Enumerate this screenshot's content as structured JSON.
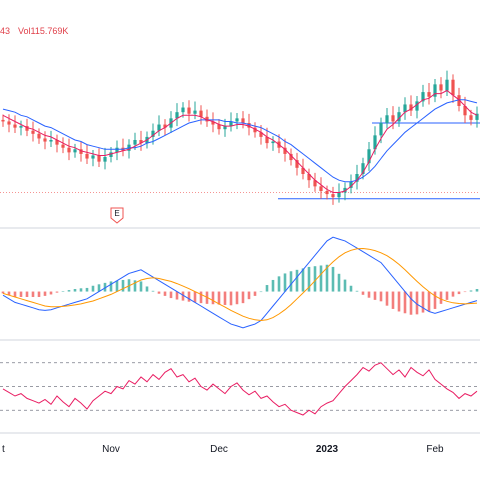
{
  "header": {
    "left_fragment": "43",
    "volume_text": "Vol115.769K"
  },
  "event_marker": {
    "letter": "E"
  },
  "colors": {
    "up": "#26a69a",
    "down": "#ef5350",
    "ma_fast": "#e91e63",
    "ma_slow": "#2962ff",
    "macd": "#2962ff",
    "signal": "#ff9800",
    "rsi": "#e91e63",
    "grid": "#e0e3eb",
    "hline": "#2962ff"
  },
  "chart_data": {
    "type": "candlestick",
    "x_axis_labels": [
      "t",
      "Nov",
      "Dec",
      "2023",
      "Feb"
    ],
    "price": {
      "close": [
        40.2,
        40.0,
        39.8,
        39.9,
        39.6,
        39.4,
        39.1,
        38.9,
        39.0,
        38.7,
        38.5,
        38.2,
        38.4,
        38.1,
        37.8,
        38.0,
        37.6,
        37.9,
        38.2,
        38.5,
        38.3,
        38.7,
        39.0,
        38.8,
        39.2,
        39.6,
        40.0,
        39.8,
        40.4,
        40.8,
        41.1,
        40.7,
        40.9,
        40.5,
        40.2,
        40.0,
        39.7,
        39.9,
        40.2,
        40.4,
        40.1,
        39.8,
        39.5,
        39.2,
        38.8,
        38.9,
        38.5,
        38.1,
        37.7,
        37.2,
        36.8,
        36.4,
        36.0,
        35.7,
        35.5,
        35.3,
        35.6,
        35.9,
        36.3,
        36.8,
        37.5,
        38.4,
        39.3,
        40.1,
        40.6,
        40.2,
        40.8,
        41.3,
        40.9,
        41.5,
        42.1,
        41.8,
        42.6,
        42.2,
        42.9,
        41.9,
        41.2,
        40.6,
        40.3,
        40.7
      ],
      "ma_fast": [
        40.6,
        40.4,
        40.2,
        40.0,
        39.8,
        39.7,
        39.5,
        39.3,
        39.2,
        39.0,
        38.8,
        38.6,
        38.5,
        38.3,
        38.2,
        38.1,
        38.0,
        38.0,
        38.1,
        38.2,
        38.3,
        38.4,
        38.6,
        38.8,
        39.0,
        39.3,
        39.6,
        39.8,
        40.1,
        40.4,
        40.6,
        40.6,
        40.6,
        40.5,
        40.3,
        40.2,
        40.0,
        39.9,
        39.9,
        40.0,
        40.0,
        39.9,
        39.7,
        39.5,
        39.2,
        39.0,
        38.7,
        38.4,
        38.0,
        37.6,
        37.2,
        36.8,
        36.4,
        36.1,
        35.8,
        35.6,
        35.6,
        35.7,
        36.0,
        36.4,
        36.9,
        37.6,
        38.4,
        39.1,
        39.7,
        40.0,
        40.4,
        40.8,
        41.0,
        41.3,
        41.6,
        41.7,
        42.0,
        42.0,
        42.2,
        41.9,
        41.6,
        41.2,
        40.8,
        40.6
      ],
      "ma_slow": [
        41.0,
        40.9,
        40.8,
        40.6,
        40.5,
        40.3,
        40.1,
        39.9,
        39.8,
        39.6,
        39.4,
        39.2,
        39.0,
        38.9,
        38.7,
        38.6,
        38.5,
        38.4,
        38.4,
        38.4,
        38.4,
        38.5,
        38.5,
        38.6,
        38.8,
        38.9,
        39.1,
        39.3,
        39.5,
        39.7,
        39.9,
        40.1,
        40.2,
        40.3,
        40.3,
        40.3,
        40.3,
        40.2,
        40.2,
        40.1,
        40.1,
        40.0,
        39.9,
        39.8,
        39.6,
        39.4,
        39.2,
        38.9,
        38.7,
        38.4,
        38.1,
        37.8,
        37.5,
        37.2,
        36.9,
        36.6,
        36.4,
        36.3,
        36.3,
        36.4,
        36.6,
        36.9,
        37.3,
        37.8,
        38.3,
        38.7,
        39.1,
        39.5,
        39.8,
        40.1,
        40.4,
        40.7,
        41.0,
        41.2,
        41.4,
        41.5,
        41.6,
        41.6,
        41.5,
        41.4
      ],
      "support_level": 35.2,
      "resistance_level": 40.1,
      "y_range": [
        33.5,
        44.5
      ]
    },
    "macd": {
      "macd": [
        -0.1,
        -0.2,
        -0.3,
        -0.35,
        -0.4,
        -0.45,
        -0.5,
        -0.52,
        -0.5,
        -0.45,
        -0.4,
        -0.35,
        -0.3,
        -0.25,
        -0.2,
        -0.1,
        0.0,
        0.1,
        0.2,
        0.3,
        0.4,
        0.5,
        0.55,
        0.6,
        0.5,
        0.4,
        0.3,
        0.2,
        0.1,
        0.0,
        -0.1,
        -0.2,
        -0.3,
        -0.4,
        -0.5,
        -0.6,
        -0.7,
        -0.8,
        -0.9,
        -0.95,
        -1.0,
        -0.95,
        -0.9,
        -0.8,
        -0.6,
        -0.4,
        -0.2,
        0.0,
        0.2,
        0.4,
        0.6,
        0.8,
        1.0,
        1.2,
        1.4,
        1.5,
        1.45,
        1.4,
        1.3,
        1.2,
        1.1,
        1.0,
        0.9,
        0.8,
        0.6,
        0.4,
        0.2,
        0.0,
        -0.2,
        -0.35,
        -0.45,
        -0.55,
        -0.6,
        -0.55,
        -0.5,
        -0.45,
        -0.4,
        -0.35,
        -0.3,
        -0.25
      ],
      "signal": [
        -0.05,
        -0.1,
        -0.15,
        -0.2,
        -0.25,
        -0.3,
        -0.35,
        -0.4,
        -0.42,
        -0.42,
        -0.41,
        -0.39,
        -0.37,
        -0.34,
        -0.3,
        -0.26,
        -0.2,
        -0.14,
        -0.08,
        0.0,
        0.08,
        0.16,
        0.24,
        0.32,
        0.36,
        0.38,
        0.36,
        0.32,
        0.28,
        0.22,
        0.15,
        0.08,
        0.0,
        -0.08,
        -0.16,
        -0.25,
        -0.34,
        -0.43,
        -0.52,
        -0.6,
        -0.68,
        -0.74,
        -0.78,
        -0.8,
        -0.78,
        -0.72,
        -0.62,
        -0.5,
        -0.36,
        -0.2,
        -0.04,
        0.12,
        0.3,
        0.48,
        0.66,
        0.82,
        0.96,
        1.07,
        1.14,
        1.18,
        1.19,
        1.17,
        1.13,
        1.07,
        0.99,
        0.88,
        0.75,
        0.6,
        0.44,
        0.28,
        0.13,
        0.0,
        -0.12,
        -0.21,
        -0.27,
        -0.31,
        -0.33,
        -0.34,
        -0.33,
        -0.32
      ],
      "y_range": [
        -1.2,
        1.7
      ]
    },
    "rsi": {
      "values": [
        48,
        45,
        42,
        44,
        40,
        38,
        36,
        39,
        35,
        42,
        37,
        33,
        40,
        36,
        31,
        38,
        42,
        46,
        44,
        50,
        48,
        55,
        52,
        58,
        54,
        60,
        56,
        62,
        65,
        58,
        60,
        54,
        57,
        50,
        47,
        52,
        48,
        44,
        50,
        53,
        47,
        43,
        46,
        40,
        42,
        37,
        33,
        35,
        30,
        28,
        26,
        30,
        27,
        33,
        36,
        38,
        44,
        50,
        55,
        60,
        66,
        63,
        68,
        70,
        65,
        60,
        64,
        58,
        66,
        62,
        59,
        64,
        56,
        52,
        48,
        45,
        40,
        44,
        42,
        46
      ],
      "levels": [
        70,
        50,
        30
      ],
      "y_range": [
        15,
        85
      ]
    }
  }
}
